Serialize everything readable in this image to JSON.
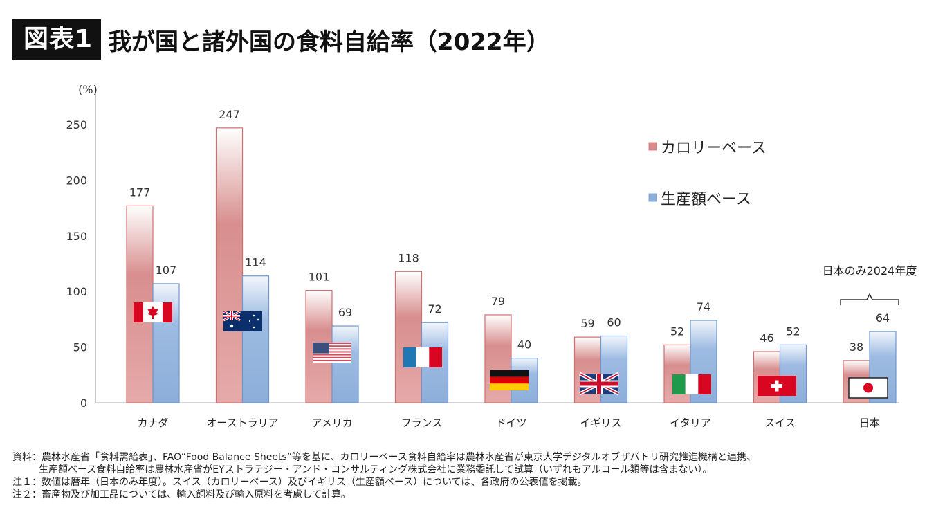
{
  "header": {
    "badge": "図表1",
    "title": "我が国と諸外国の食料自給率（2022年）"
  },
  "chart_data": {
    "type": "bar",
    "title": "我が国と諸外国の食料自給率（2022年）",
    "ylabel": "(%)",
    "xlabel": "",
    "ylim": [
      0,
      250
    ],
    "yticks": [
      0,
      50,
      100,
      150,
      200,
      250
    ],
    "grid": false,
    "legend_position": "top-right",
    "categories": [
      "カナダ",
      "オーストラリア",
      "アメリカ",
      "フランス",
      "ドイツ",
      "イギリス",
      "イタリア",
      "スイス",
      "日本"
    ],
    "flags": [
      "canada-flag",
      "australia-flag",
      "usa-flag",
      "france-flag",
      "germany-flag",
      "uk-flag",
      "italy-flag",
      "switzerland-flag",
      "japan-flag"
    ],
    "series": [
      {
        "name": "カロリーベース",
        "color": "#d98a8a",
        "values": [
          177,
          247,
          101,
          118,
          79,
          59,
          52,
          46,
          38
        ]
      },
      {
        "name": "生産額ベース",
        "color": "#8bafd9",
        "values": [
          107,
          114,
          69,
          72,
          40,
          60,
          74,
          52,
          64
        ]
      }
    ],
    "annotations": [
      {
        "text": "日本のみ2024年度",
        "target_category": "日本"
      }
    ]
  },
  "notes": [
    "資料：農林水産省「食料需給表」、FAO“Food Balance Sheets”等を基に、カロリーベース食料自給率は農林水産省が東京大学デジタルオブザバトリ研究推進機構と連携、",
    "生産額ベース食料自給率は農林水産省がEYストラテジー・アンド・コンサルティング株式会社に業務委託して試算（いずれもアルコール類等は含まない）。",
    "注１：数値は暦年（日本のみ年度）。スイス（カロリーベース）及びイギリス（生産額ベース）については、各政府の公表値を掲載。",
    "注２：畜産物及び加工品については、輸入飼料及び輸入原料を考慮して計算。"
  ]
}
